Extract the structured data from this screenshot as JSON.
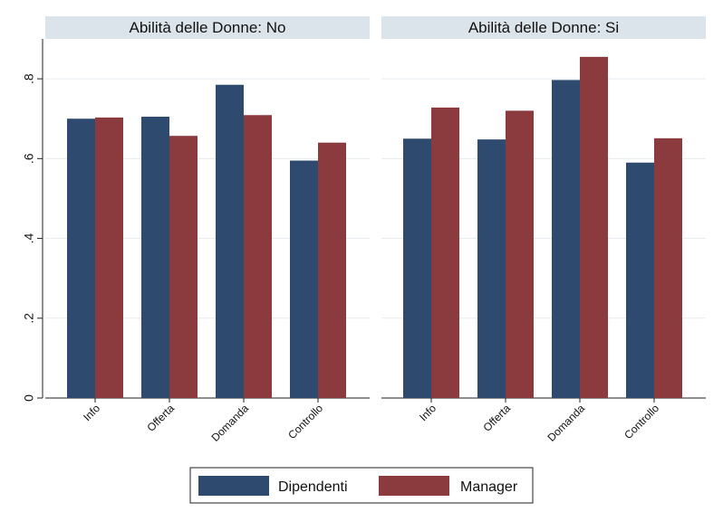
{
  "chart_data": {
    "type": "bar",
    "categories": [
      "Info",
      "Offerta",
      "Domanda",
      "Controllo"
    ],
    "ylim": [
      0,
      0.9
    ],
    "yticks": [
      0,
      0.2,
      0.4,
      0.6,
      0.8
    ],
    "ytick_labels": [
      "0",
      ".2",
      ".4",
      ".6",
      ".8"
    ],
    "grid": true,
    "legend_placement": "bottom",
    "series_colors": [
      "#2e4a6e",
      "#8b3a3d"
    ],
    "legend": [
      "Dipendenti",
      "Manager"
    ],
    "panels": [
      {
        "title": "Abilità delle Donne: No",
        "series": [
          {
            "name": "Dipendenti",
            "values": [
              0.7,
              0.705,
              0.785,
              0.595
            ]
          },
          {
            "name": "Manager",
            "values": [
              0.703,
              0.657,
              0.709,
              0.64
            ]
          }
        ]
      },
      {
        "title": "Abilità delle Donne: Si",
        "series": [
          {
            "name": "Dipendenti",
            "values": [
              0.65,
              0.648,
              0.797,
              0.59
            ]
          },
          {
            "name": "Manager",
            "values": [
              0.728,
              0.72,
              0.855,
              0.651
            ]
          }
        ]
      }
    ]
  },
  "colors": {
    "header_bg": "#dbe4ea",
    "grid": "#e6ecef"
  }
}
